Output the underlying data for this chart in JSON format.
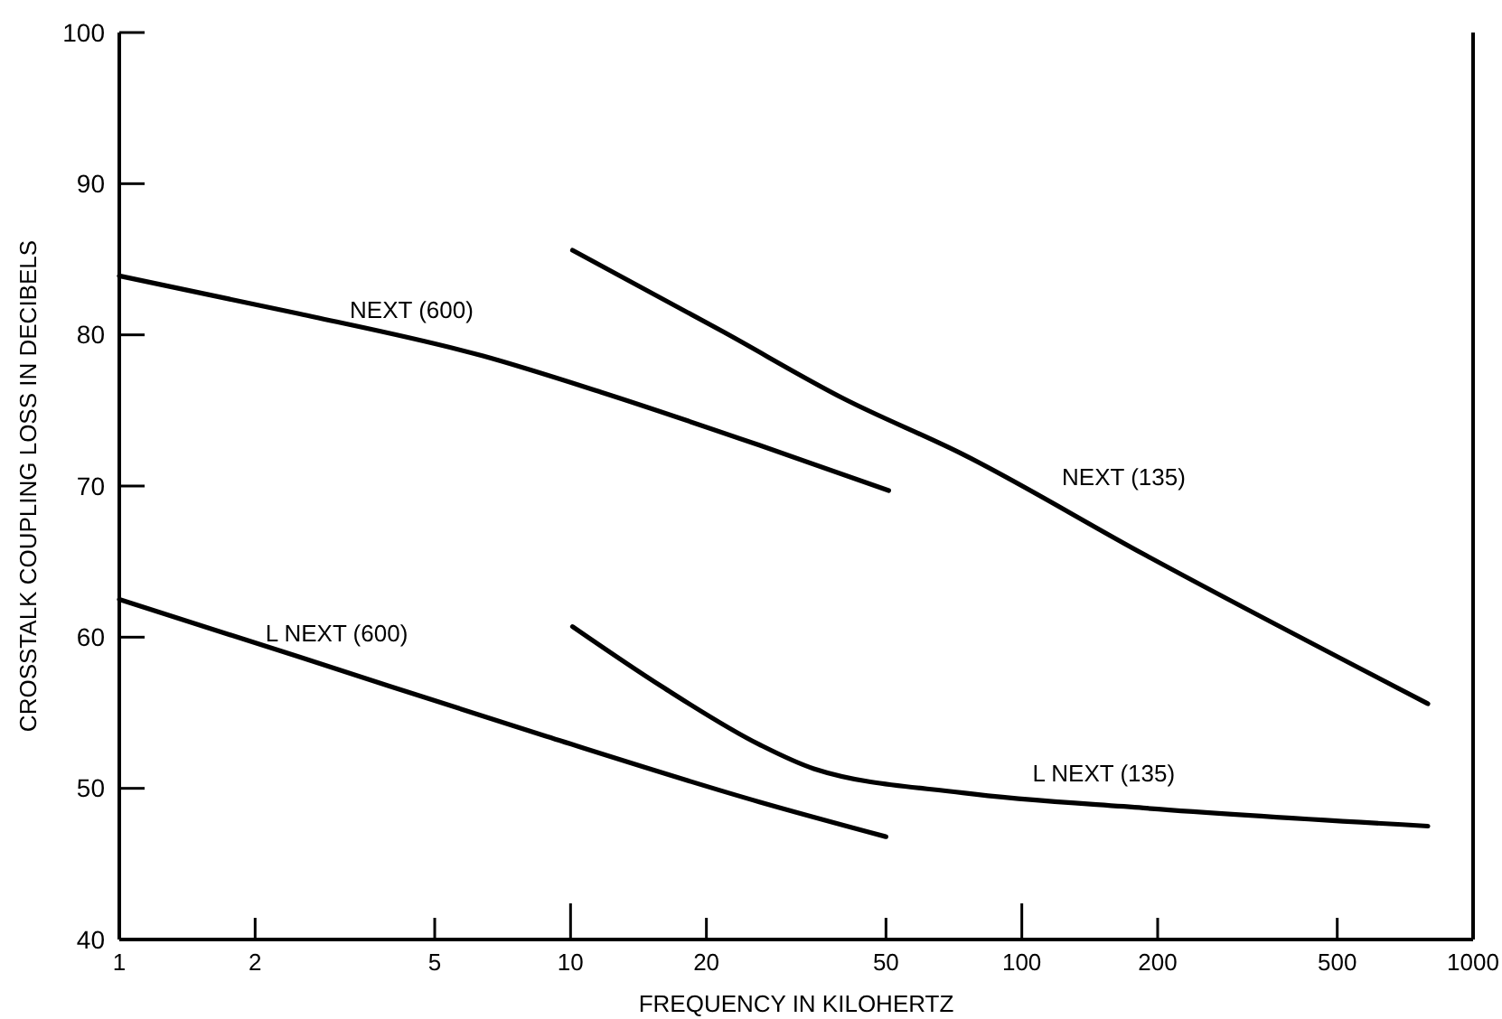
{
  "chart_data": {
    "type": "line",
    "xlabel": "FREQUENCY IN KILOHERTZ",
    "ylabel": "CROSSTALK COUPLING LOSS IN DECIBELS",
    "log": "x",
    "xlim": [
      1,
      1000
    ],
    "xticks": [
      1,
      2,
      5,
      10,
      20,
      50,
      100,
      200,
      500,
      1000
    ],
    "ylim": [
      40,
      100
    ],
    "yticks": [
      40,
      50,
      60,
      70,
      80,
      90,
      100
    ],
    "grid": false,
    "marker": "none",
    "line_style": "solid",
    "series": [
      {
        "name": "NEXT (600)",
        "color": "#000000",
        "x": [
          1,
          2.5,
          6.4,
          11.7,
          26.2,
          50.7
        ],
        "values": [
          83.9,
          81.4,
          78.6,
          76.2,
          72.7,
          69.7
        ]
      },
      {
        "name": "NEXT (135)",
        "color": "#000000",
        "x": [
          10.1,
          21.8,
          40.2,
          74,
          186,
          794
        ],
        "values": [
          85.6,
          80.2,
          75.8,
          72.1,
          65.5,
          55.6
        ]
      },
      {
        "name": "L NEXT (600)",
        "color": "#000000",
        "x": [
          1,
          2.5,
          8.7,
          26.2,
          50
        ],
        "values": [
          62.5,
          58.7,
          53.5,
          49.1,
          46.8
        ]
      },
      {
        "name": "L NEXT (135)",
        "color": "#000000",
        "x": [
          10.1,
          16,
          26.2,
          34.6,
          74,
          186,
          794
        ],
        "values": [
          60.7,
          56.7,
          52.9,
          51.3,
          49.7,
          48.7,
          47.5
        ]
      }
    ]
  }
}
